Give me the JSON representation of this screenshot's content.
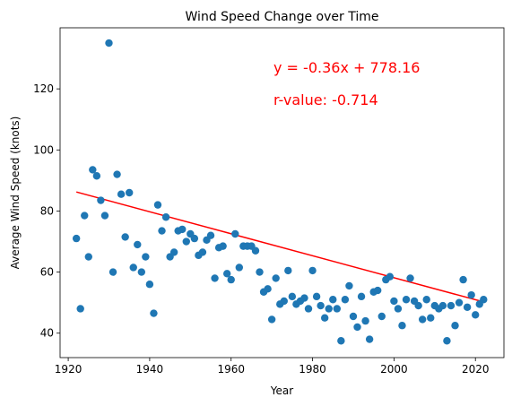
{
  "chart_data": {
    "type": "scatter",
    "title": "Wind Speed Change over Time",
    "xlabel": "Year",
    "ylabel": "Average Wind Speed (knots)",
    "xlim": [
      1918,
      2027
    ],
    "ylim": [
      32,
      140
    ],
    "xticks": [
      1920,
      1940,
      1960,
      1980,
      2000,
      2020
    ],
    "yticks": [
      40,
      60,
      80,
      100,
      120
    ],
    "grid": false,
    "point_color": "#1f77b4",
    "line_color": "#ff0000",
    "regression": {
      "slope": -0.36,
      "intercept": 778.16,
      "x_start": 1922,
      "x_end": 2022
    },
    "annotations": [
      "y = -0.36x + 778.16",
      "r-value: -0.714"
    ],
    "points": [
      [
        1922,
        71
      ],
      [
        1923,
        48
      ],
      [
        1924,
        78.5
      ],
      [
        1925,
        65
      ],
      [
        1926,
        93.5
      ],
      [
        1927,
        91.5
      ],
      [
        1928,
        83.5
      ],
      [
        1929,
        78.5
      ],
      [
        1930,
        135
      ],
      [
        1931,
        60
      ],
      [
        1932,
        92
      ],
      [
        1933,
        85.5
      ],
      [
        1934,
        71.5
      ],
      [
        1935,
        86
      ],
      [
        1936,
        61.5
      ],
      [
        1937,
        69
      ],
      [
        1938,
        60
      ],
      [
        1939,
        65
      ],
      [
        1940,
        56
      ],
      [
        1941,
        46.5
      ],
      [
        1942,
        82
      ],
      [
        1943,
        73.5
      ],
      [
        1944,
        78
      ],
      [
        1945,
        65
      ],
      [
        1946,
        66.5
      ],
      [
        1947,
        73.5
      ],
      [
        1948,
        74
      ],
      [
        1949,
        70
      ],
      [
        1950,
        72.5
      ],
      [
        1951,
        71
      ],
      [
        1952,
        65.5
      ],
      [
        1953,
        66.5
      ],
      [
        1954,
        70.5
      ],
      [
        1955,
        72
      ],
      [
        1956,
        58
      ],
      [
        1957,
        68
      ],
      [
        1958,
        68.5
      ],
      [
        1959,
        59.5
      ],
      [
        1960,
        57.5
      ],
      [
        1961,
        72.5
      ],
      [
        1962,
        61.5
      ],
      [
        1963,
        68.5
      ],
      [
        1964,
        68.5
      ],
      [
        1965,
        68.5
      ],
      [
        1966,
        67
      ],
      [
        1967,
        60
      ],
      [
        1968,
        53.5
      ],
      [
        1969,
        54.5
      ],
      [
        1970,
        44.5
      ],
      [
        1971,
        58
      ],
      [
        1972,
        49.5
      ],
      [
        1973,
        50.5
      ],
      [
        1974,
        60.5
      ],
      [
        1975,
        52
      ],
      [
        1976,
        49.5
      ],
      [
        1977,
        50.5
      ],
      [
        1978,
        51.5
      ],
      [
        1979,
        48
      ],
      [
        1980,
        60.5
      ],
      [
        1981,
        52
      ],
      [
        1982,
        49
      ],
      [
        1983,
        45
      ],
      [
        1984,
        48
      ],
      [
        1985,
        51
      ],
      [
        1986,
        48
      ],
      [
        1987,
        37.5
      ],
      [
        1988,
        51
      ],
      [
        1989,
        55.5
      ],
      [
        1990,
        45.5
      ],
      [
        1991,
        42
      ],
      [
        1992,
        52
      ],
      [
        1993,
        44
      ],
      [
        1994,
        38
      ],
      [
        1995,
        53.5
      ],
      [
        1996,
        54
      ],
      [
        1997,
        45.5
      ],
      [
        1998,
        57.5
      ],
      [
        1999,
        58.5
      ],
      [
        2000,
        50.5
      ],
      [
        2001,
        48
      ],
      [
        2002,
        42.5
      ],
      [
        2003,
        51
      ],
      [
        2004,
        58
      ],
      [
        2005,
        50.5
      ],
      [
        2006,
        49
      ],
      [
        2007,
        44.5
      ],
      [
        2008,
        51
      ],
      [
        2009,
        45
      ],
      [
        2010,
        49
      ],
      [
        2011,
        48
      ],
      [
        2012,
        49
      ],
      [
        2013,
        37.5
      ],
      [
        2014,
        49
      ],
      [
        2015,
        42.5
      ],
      [
        2016,
        50
      ],
      [
        2017,
        57.5
      ],
      [
        2018,
        48.5
      ],
      [
        2019,
        52.5
      ],
      [
        2020,
        46
      ],
      [
        2021,
        49.5
      ],
      [
        2022,
        51
      ]
    ]
  }
}
